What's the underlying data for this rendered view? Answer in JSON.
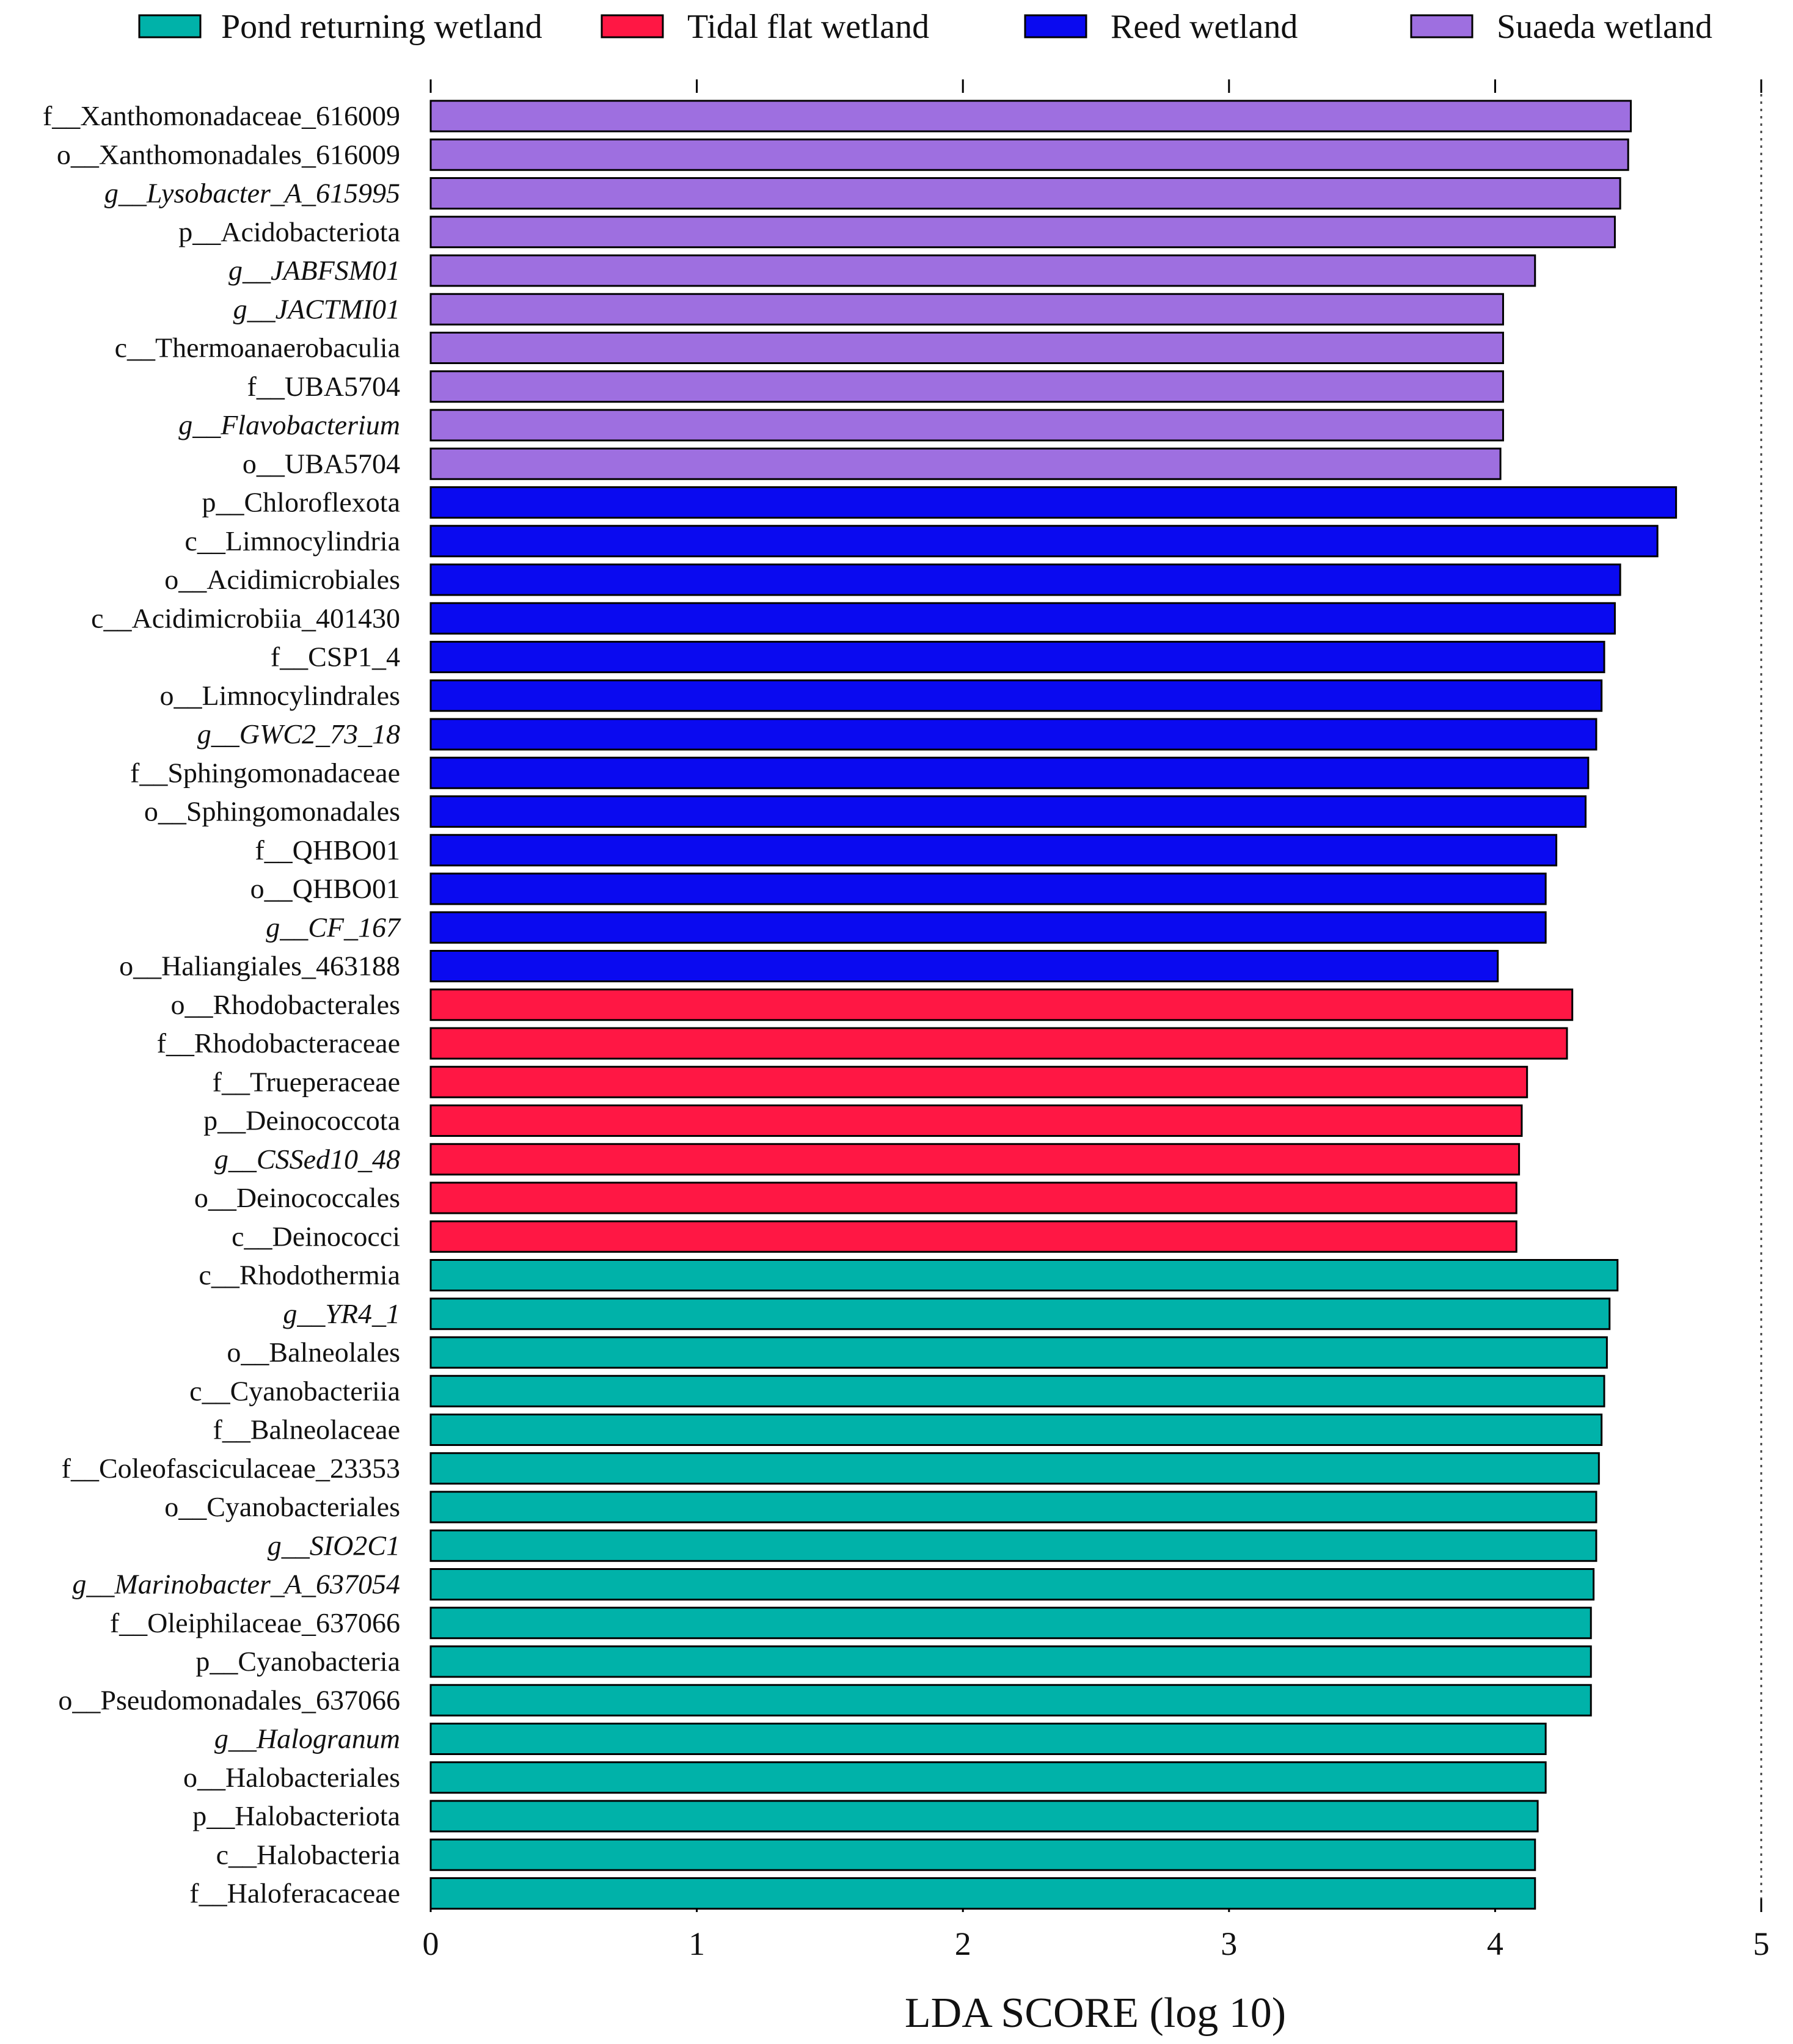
{
  "chart_data": {
    "type": "bar",
    "orientation": "horizontal",
    "title": "",
    "xlabel": "LDA SCORE (log 10)",
    "ylabel": "",
    "xlim": [
      0,
      5
    ],
    "xticks": [
      "0",
      "1",
      "2",
      "3",
      "4",
      "5"
    ],
    "grid": false,
    "legend_position": "top",
    "groups": [
      {
        "key": "pond",
        "name": "Pond returning wetland",
        "color": "#00B2A9"
      },
      {
        "key": "tidal",
        "name": "Tidal flat wetland",
        "color": "#FF1744"
      },
      {
        "key": "reed",
        "name": "Reed wetland",
        "color": "#0A0AF0"
      },
      {
        "key": "suaeda",
        "name": "Suaeda wetland",
        "color": "#9E6FE0"
      }
    ],
    "bars": [
      {
        "label": "f__Xanthomonadaceae_616009",
        "value": 4.51,
        "group": "suaeda",
        "italic": false
      },
      {
        "label": "o__Xanthomonadales_616009",
        "value": 4.5,
        "group": "suaeda",
        "italic": false
      },
      {
        "label": "g__Lysobacter_A_615995",
        "value": 4.47,
        "group": "suaeda",
        "italic": true
      },
      {
        "label": "p__Acidobacteriota",
        "value": 4.45,
        "group": "suaeda",
        "italic": false
      },
      {
        "label": "g__JABFSM01",
        "value": 4.15,
        "group": "suaeda",
        "italic": true
      },
      {
        "label": "g__JACTMI01",
        "value": 4.03,
        "group": "suaeda",
        "italic": true
      },
      {
        "label": "c__Thermoanaerobaculia",
        "value": 4.03,
        "group": "suaeda",
        "italic": false
      },
      {
        "label": "f__UBA5704",
        "value": 4.03,
        "group": "suaeda",
        "italic": false
      },
      {
        "label": "g__Flavobacterium",
        "value": 4.03,
        "group": "suaeda",
        "italic": true
      },
      {
        "label": "o__UBA5704",
        "value": 4.02,
        "group": "suaeda",
        "italic": false
      },
      {
        "label": "p__Chloroflexota",
        "value": 4.68,
        "group": "reed",
        "italic": false
      },
      {
        "label": "c__Limnocylindria",
        "value": 4.61,
        "group": "reed",
        "italic": false
      },
      {
        "label": "o__Acidimicrobiales",
        "value": 4.47,
        "group": "reed",
        "italic": false
      },
      {
        "label": "c__Acidimicrobiia_401430",
        "value": 4.45,
        "group": "reed",
        "italic": false
      },
      {
        "label": "f__CSP1_4",
        "value": 4.41,
        "group": "reed",
        "italic": false
      },
      {
        "label": "o__Limnocylindrales",
        "value": 4.4,
        "group": "reed",
        "italic": false
      },
      {
        "label": "g__GWC2_73_18",
        "value": 4.38,
        "group": "reed",
        "italic": true
      },
      {
        "label": "f__Sphingomonadaceae",
        "value": 4.35,
        "group": "reed",
        "italic": false
      },
      {
        "label": "o__Sphingomonadales",
        "value": 4.34,
        "group": "reed",
        "italic": false
      },
      {
        "label": "f__QHBO01",
        "value": 4.23,
        "group": "reed",
        "italic": false
      },
      {
        "label": "o__QHBO01",
        "value": 4.19,
        "group": "reed",
        "italic": false
      },
      {
        "label": "g__CF_167",
        "value": 4.19,
        "group": "reed",
        "italic": true
      },
      {
        "label": "o__Haliangiales_463188",
        "value": 4.01,
        "group": "reed",
        "italic": false
      },
      {
        "label": "o__Rhodobacterales",
        "value": 4.29,
        "group": "tidal",
        "italic": false
      },
      {
        "label": "f__Rhodobacteraceae",
        "value": 4.27,
        "group": "tidal",
        "italic": false
      },
      {
        "label": "f__Trueperaceae",
        "value": 4.12,
        "group": "tidal",
        "italic": false
      },
      {
        "label": "p__Deinococcota",
        "value": 4.1,
        "group": "tidal",
        "italic": false
      },
      {
        "label": "g__CSSed10_48",
        "value": 4.09,
        "group": "tidal",
        "italic": true
      },
      {
        "label": "o__Deinococcales",
        "value": 4.08,
        "group": "tidal",
        "italic": false
      },
      {
        "label": "c__Deinococci",
        "value": 4.08,
        "group": "tidal",
        "italic": false
      },
      {
        "label": "c__Rhodothermia",
        "value": 4.46,
        "group": "pond",
        "italic": false
      },
      {
        "label": "g__YR4_1",
        "value": 4.43,
        "group": "pond",
        "italic": true
      },
      {
        "label": "o__Balneolales",
        "value": 4.42,
        "group": "pond",
        "italic": false
      },
      {
        "label": "c__Cyanobacteriia",
        "value": 4.41,
        "group": "pond",
        "italic": false
      },
      {
        "label": "f__Balneolaceae",
        "value": 4.4,
        "group": "pond",
        "italic": false
      },
      {
        "label": "f__Coleofasciculaceae_23353",
        "value": 4.39,
        "group": "pond",
        "italic": false
      },
      {
        "label": "o__Cyanobacteriales",
        "value": 4.38,
        "group": "pond",
        "italic": false
      },
      {
        "label": "g__SIO2C1",
        "value": 4.38,
        "group": "pond",
        "italic": true
      },
      {
        "label": "g__Marinobacter_A_637054",
        "value": 4.37,
        "group": "pond",
        "italic": true
      },
      {
        "label": "f__Oleiphilaceae_637066",
        "value": 4.36,
        "group": "pond",
        "italic": false
      },
      {
        "label": "p__Cyanobacteria",
        "value": 4.36,
        "group": "pond",
        "italic": false
      },
      {
        "label": "o__Pseudomonadales_637066",
        "value": 4.36,
        "group": "pond",
        "italic": false
      },
      {
        "label": "g__Halogranum",
        "value": 4.19,
        "group": "pond",
        "italic": true
      },
      {
        "label": "o__Halobacteriales",
        "value": 4.19,
        "group": "pond",
        "italic": false
      },
      {
        "label": "p__Halobacteriota",
        "value": 4.16,
        "group": "pond",
        "italic": false
      },
      {
        "label": "c__Halobacteria",
        "value": 4.15,
        "group": "pond",
        "italic": false
      },
      {
        "label": "f__Haloferacaceae",
        "value": 4.15,
        "group": "pond",
        "italic": false
      }
    ]
  }
}
